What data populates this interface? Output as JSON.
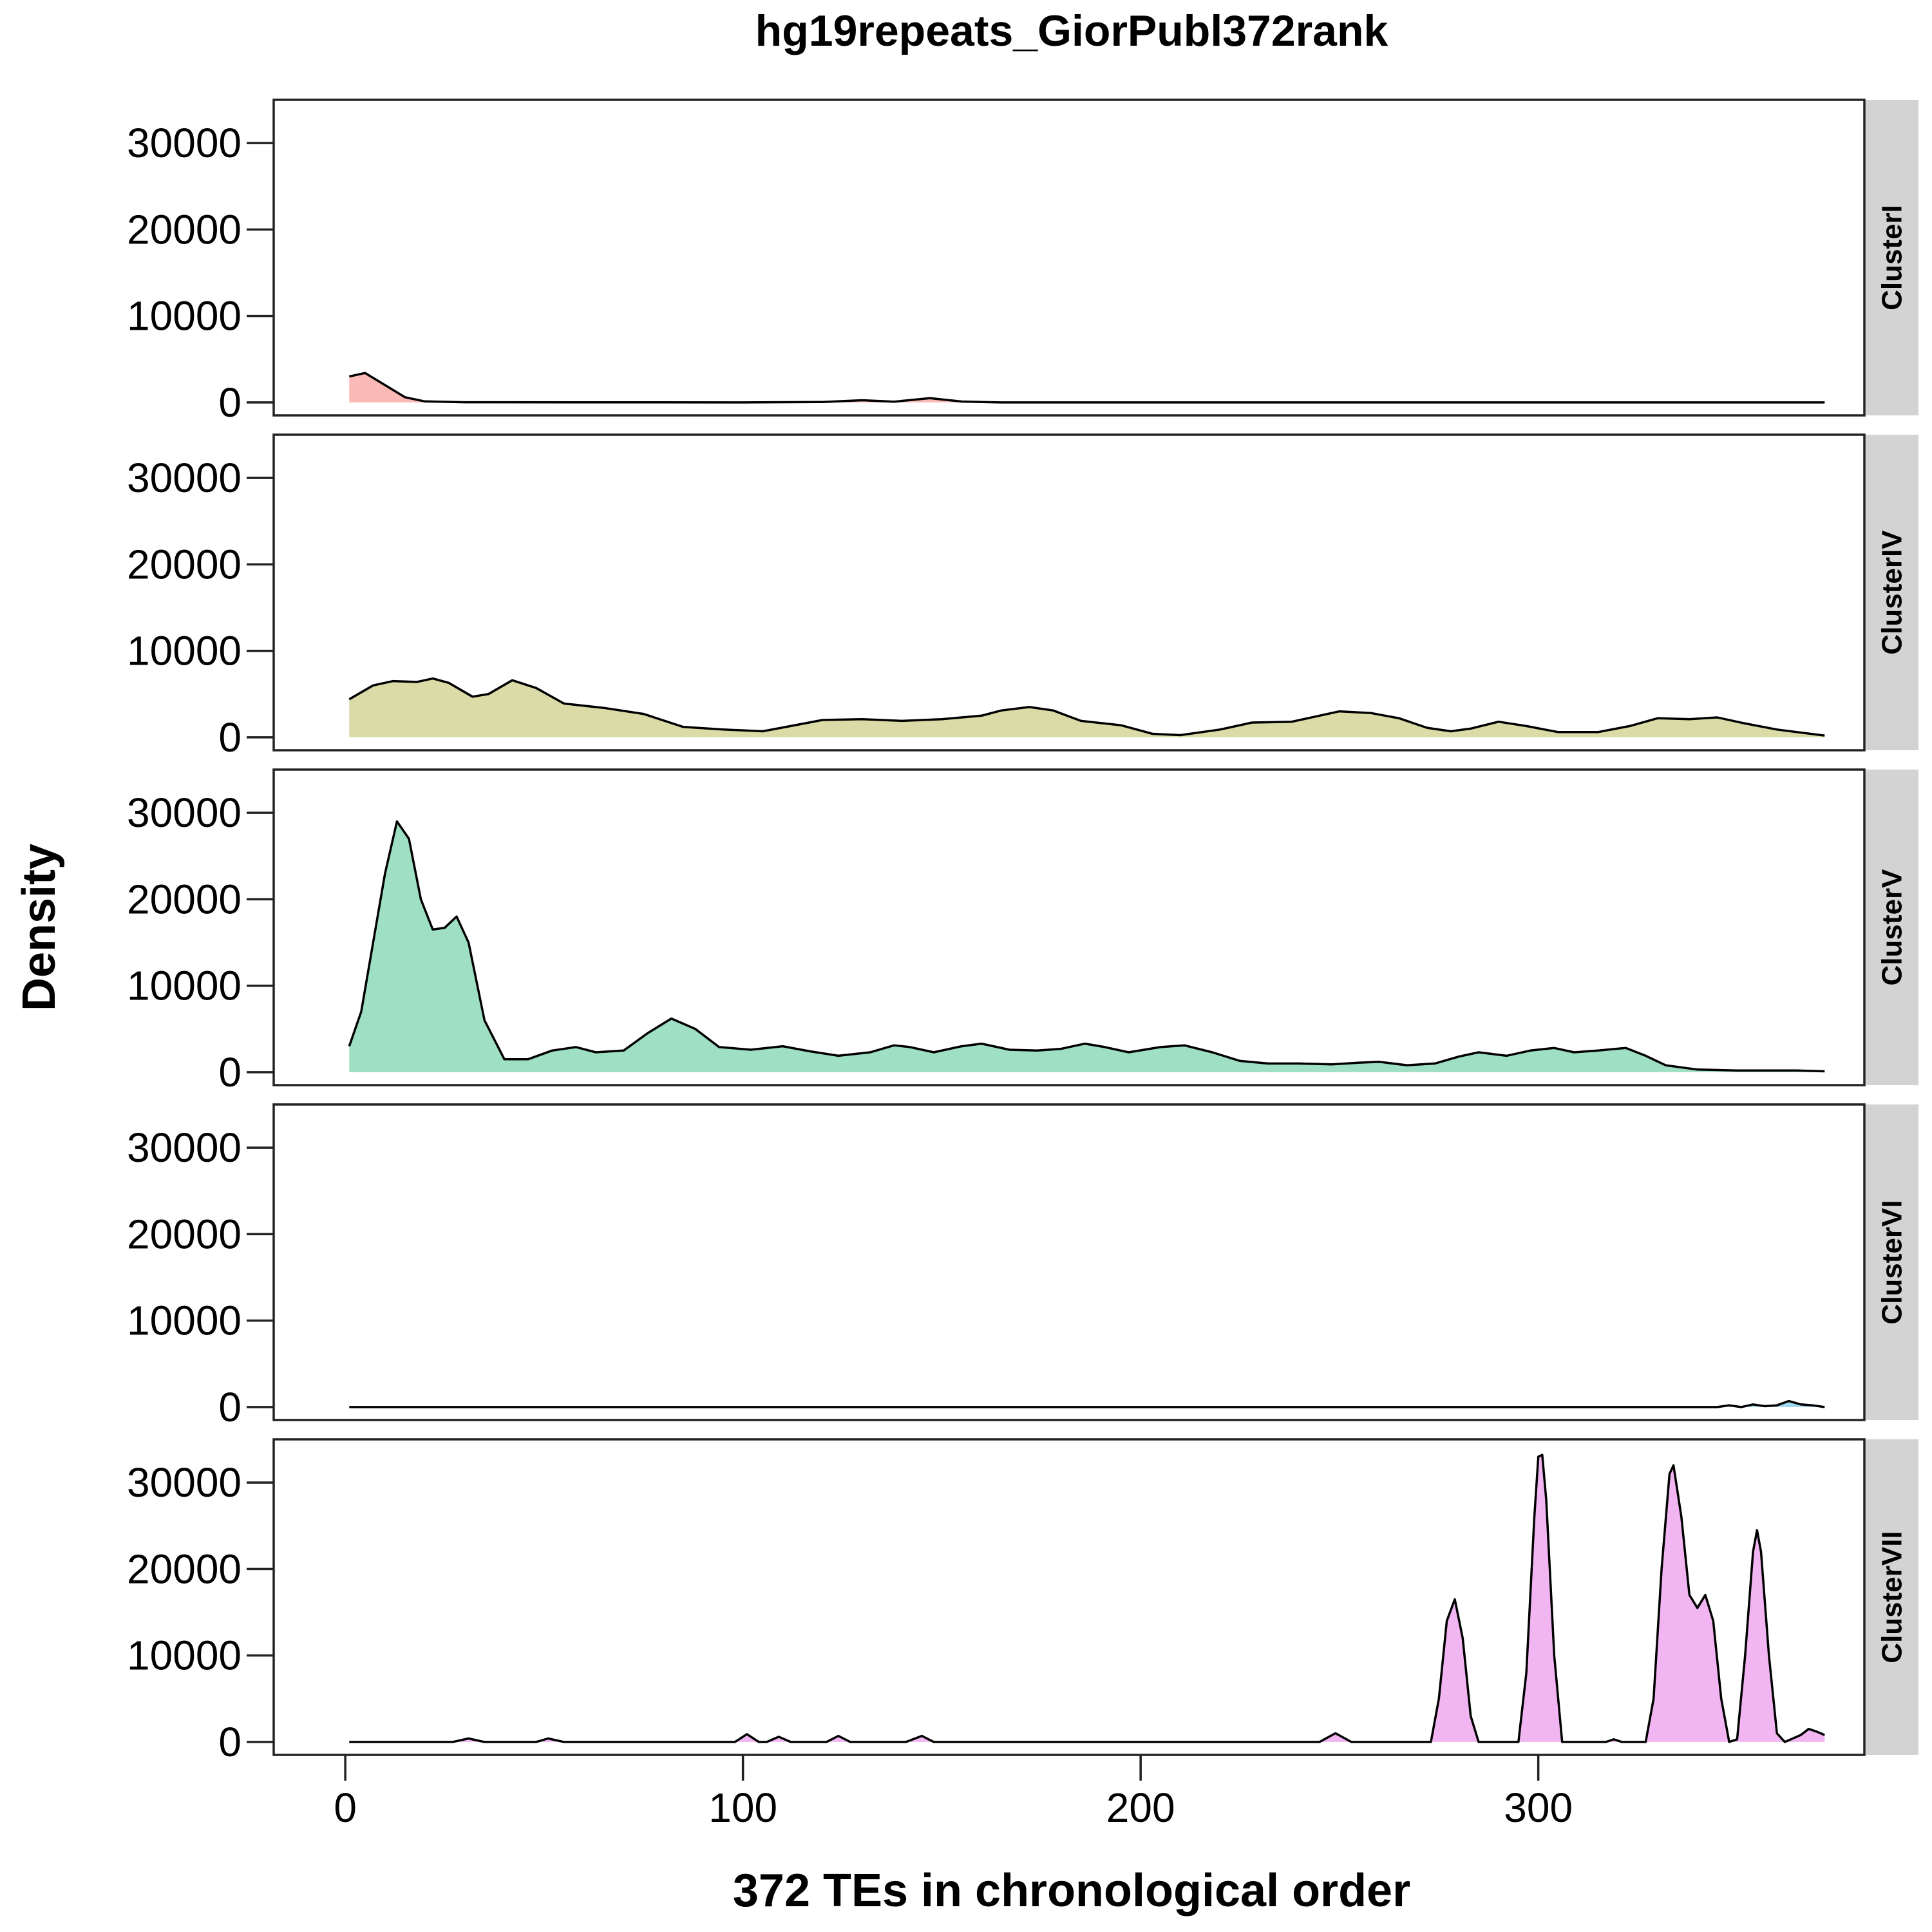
{
  "chart_data": {
    "type": "area",
    "title": "hg19repeats_GiorPubl372rank",
    "xlabel": "372 TEs in chronological order",
    "ylabel": "Density",
    "x_ticks": [
      0,
      100,
      200,
      300
    ],
    "y_ticks": [
      0,
      10000,
      20000,
      30000
    ],
    "xlim": [
      -18,
      382
    ],
    "ylim": [
      -1500,
      35000
    ],
    "facet_position": "right",
    "grid": false,
    "panels": [
      {
        "name": "ClusterI",
        "fill": "#f8766d",
        "points": [
          [
            1,
            3000
          ],
          [
            5,
            3400
          ],
          [
            10,
            2000
          ],
          [
            15,
            600
          ],
          [
            20,
            120
          ],
          [
            30,
            20
          ],
          [
            100,
            0
          ],
          [
            120,
            50
          ],
          [
            130,
            250
          ],
          [
            138,
            80
          ],
          [
            147,
            500
          ],
          [
            155,
            100
          ],
          [
            165,
            0
          ],
          [
            372,
            0
          ]
        ]
      },
      {
        "name": "ClusterIV",
        "fill": "#b7b850",
        "points": [
          [
            1,
            4400
          ],
          [
            7,
            6000
          ],
          [
            12,
            6500
          ],
          [
            18,
            6400
          ],
          [
            22,
            6800
          ],
          [
            26,
            6300
          ],
          [
            32,
            4700
          ],
          [
            36,
            5000
          ],
          [
            42,
            6600
          ],
          [
            48,
            5700
          ],
          [
            55,
            3900
          ],
          [
            65,
            3400
          ],
          [
            75,
            2700
          ],
          [
            85,
            1200
          ],
          [
            95,
            900
          ],
          [
            105,
            700
          ],
          [
            112,
            1300
          ],
          [
            120,
            2000
          ],
          [
            130,
            2100
          ],
          [
            140,
            1900
          ],
          [
            150,
            2100
          ],
          [
            160,
            2500
          ],
          [
            165,
            3100
          ],
          [
            172,
            3500
          ],
          [
            178,
            3100
          ],
          [
            185,
            1900
          ],
          [
            195,
            1400
          ],
          [
            203,
            400
          ],
          [
            210,
            250
          ],
          [
            220,
            900
          ],
          [
            228,
            1700
          ],
          [
            238,
            1800
          ],
          [
            245,
            2500
          ],
          [
            250,
            3000
          ],
          [
            258,
            2800
          ],
          [
            265,
            2200
          ],
          [
            272,
            1100
          ],
          [
            278,
            700
          ],
          [
            283,
            1000
          ],
          [
            290,
            1800
          ],
          [
            297,
            1300
          ],
          [
            305,
            600
          ],
          [
            315,
            600
          ],
          [
            323,
            1300
          ],
          [
            330,
            2200
          ],
          [
            338,
            2100
          ],
          [
            345,
            2300
          ],
          [
            352,
            1600
          ],
          [
            360,
            900
          ],
          [
            372,
            200
          ]
        ]
      },
      {
        "name": "ClusterV",
        "fill": "#3fc28a",
        "points": [
          [
            1,
            3000
          ],
          [
            4,
            7000
          ],
          [
            7,
            15000
          ],
          [
            10,
            23000
          ],
          [
            13,
            29000
          ],
          [
            16,
            27000
          ],
          [
            19,
            20000
          ],
          [
            22,
            16500
          ],
          [
            25,
            16700
          ],
          [
            28,
            18000
          ],
          [
            31,
            15000
          ],
          [
            35,
            6000
          ],
          [
            40,
            1500
          ],
          [
            46,
            1500
          ],
          [
            52,
            2500
          ],
          [
            58,
            2900
          ],
          [
            63,
            2300
          ],
          [
            70,
            2500
          ],
          [
            76,
            4500
          ],
          [
            82,
            6200
          ],
          [
            88,
            5000
          ],
          [
            94,
            2900
          ],
          [
            102,
            2600
          ],
          [
            110,
            3000
          ],
          [
            117,
            2400
          ],
          [
            124,
            1900
          ],
          [
            132,
            2300
          ],
          [
            138,
            3100
          ],
          [
            142,
            2900
          ],
          [
            148,
            2300
          ],
          [
            155,
            3000
          ],
          [
            160,
            3300
          ],
          [
            167,
            2600
          ],
          [
            174,
            2500
          ],
          [
            180,
            2700
          ],
          [
            186,
            3300
          ],
          [
            191,
            2900
          ],
          [
            197,
            2300
          ],
          [
            205,
            2900
          ],
          [
            211,
            3100
          ],
          [
            218,
            2300
          ],
          [
            225,
            1300
          ],
          [
            232,
            1000
          ],
          [
            240,
            1000
          ],
          [
            248,
            900
          ],
          [
            255,
            1100
          ],
          [
            260,
            1200
          ],
          [
            267,
            800
          ],
          [
            274,
            1000
          ],
          [
            280,
            1800
          ],
          [
            285,
            2300
          ],
          [
            292,
            1900
          ],
          [
            298,
            2500
          ],
          [
            304,
            2800
          ],
          [
            309,
            2300
          ],
          [
            315,
            2500
          ],
          [
            322,
            2800
          ],
          [
            327,
            1900
          ],
          [
            332,
            800
          ],
          [
            340,
            300
          ],
          [
            350,
            200
          ],
          [
            365,
            200
          ],
          [
            372,
            100
          ]
        ]
      },
      {
        "name": "ClusterVI",
        "fill": "#3fb6e6",
        "points": [
          [
            1,
            0
          ],
          [
            345,
            0
          ],
          [
            348,
            200
          ],
          [
            351,
            0
          ],
          [
            354,
            300
          ],
          [
            357,
            100
          ],
          [
            360,
            200
          ],
          [
            363,
            700
          ],
          [
            366,
            300
          ],
          [
            369,
            200
          ],
          [
            372,
            0
          ]
        ]
      },
      {
        "name": "ClusterVII",
        "fill": "#e36ce4",
        "points": [
          [
            1,
            0
          ],
          [
            27,
            0
          ],
          [
            31,
            400
          ],
          [
            35,
            0
          ],
          [
            48,
            0
          ],
          [
            51,
            400
          ],
          [
            55,
            0
          ],
          [
            98,
            0
          ],
          [
            101,
            900
          ],
          [
            104,
            0
          ],
          [
            106,
            0
          ],
          [
            109,
            600
          ],
          [
            112,
            0
          ],
          [
            121,
            0
          ],
          [
            124,
            700
          ],
          [
            127,
            0
          ],
          [
            141,
            0
          ],
          [
            145,
            700
          ],
          [
            148,
            0
          ],
          [
            245,
            0
          ],
          [
            249,
            1000
          ],
          [
            253,
            0
          ],
          [
            273,
            0
          ],
          [
            275,
            5000
          ],
          [
            277,
            14000
          ],
          [
            279,
            16500
          ],
          [
            281,
            12000
          ],
          [
            283,
            3000
          ],
          [
            285,
            0
          ],
          [
            295,
            0
          ],
          [
            297,
            8000
          ],
          [
            299,
            26000
          ],
          [
            300,
            33000
          ],
          [
            301,
            33200
          ],
          [
            302,
            28000
          ],
          [
            304,
            10000
          ],
          [
            306,
            0
          ],
          [
            317,
            0
          ],
          [
            319,
            300
          ],
          [
            321,
            0
          ],
          [
            327,
            0
          ],
          [
            329,
            5000
          ],
          [
            331,
            20000
          ],
          [
            333,
            31000
          ],
          [
            334,
            32000
          ],
          [
            336,
            26000
          ],
          [
            338,
            17000
          ],
          [
            340,
            15500
          ],
          [
            342,
            17000
          ],
          [
            344,
            14000
          ],
          [
            346,
            5000
          ],
          [
            348,
            0
          ],
          [
            350,
            300
          ],
          [
            352,
            10000
          ],
          [
            354,
            22000
          ],
          [
            355,
            24500
          ],
          [
            356,
            22000
          ],
          [
            358,
            10000
          ],
          [
            360,
            1000
          ],
          [
            362,
            0
          ],
          [
            366,
            800
          ],
          [
            368,
            1500
          ],
          [
            370,
            1200
          ],
          [
            372,
            800
          ]
        ]
      }
    ]
  }
}
